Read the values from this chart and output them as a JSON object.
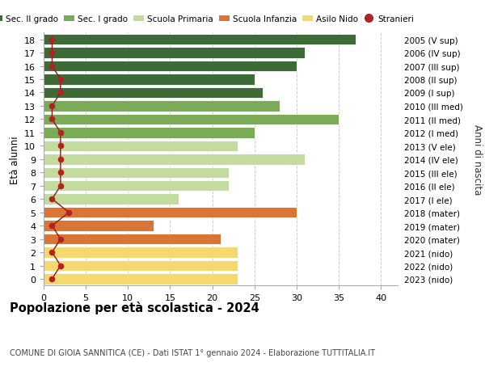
{
  "ages": [
    18,
    17,
    16,
    15,
    14,
    13,
    12,
    11,
    10,
    9,
    8,
    7,
    6,
    5,
    4,
    3,
    2,
    1,
    0
  ],
  "right_labels": [
    "2005 (V sup)",
    "2006 (IV sup)",
    "2007 (III sup)",
    "2008 (II sup)",
    "2009 (I sup)",
    "2010 (III med)",
    "2011 (II med)",
    "2012 (I med)",
    "2013 (V ele)",
    "2014 (IV ele)",
    "2015 (III ele)",
    "2016 (II ele)",
    "2017 (I ele)",
    "2018 (mater)",
    "2019 (mater)",
    "2020 (mater)",
    "2021 (nido)",
    "2022 (nido)",
    "2023 (nido)"
  ],
  "bar_values": [
    37,
    31,
    30,
    25,
    26,
    28,
    35,
    25,
    23,
    31,
    22,
    22,
    16,
    30,
    13,
    21,
    23,
    23,
    23
  ],
  "bar_colors": [
    "#3d6b35",
    "#3d6b35",
    "#3d6b35",
    "#3d6b35",
    "#3d6b35",
    "#7aab57",
    "#7aab57",
    "#7aab57",
    "#c3dba0",
    "#c3dba0",
    "#c3dba0",
    "#c3dba0",
    "#c3dba0",
    "#d97535",
    "#d97535",
    "#d97535",
    "#f5d96e",
    "#f5d96e",
    "#f5d96e"
  ],
  "stranieri_values": [
    1,
    1,
    1,
    2,
    2,
    1,
    1,
    2,
    2,
    2,
    2,
    2,
    1,
    3,
    1,
    2,
    1,
    2,
    1
  ],
  "legend_labels": [
    "Sec. II grado",
    "Sec. I grado",
    "Scuola Primaria",
    "Scuola Infanzia",
    "Asilo Nido",
    "Stranieri"
  ],
  "legend_colors": [
    "#3d6b35",
    "#7aab57",
    "#c3dba0",
    "#d97535",
    "#f5d96e",
    "#b22222"
  ],
  "ylabel": "Età alunni",
  "ylabel_right": "Anni di nascita",
  "title": "Popolazione per età scolastica - 2024",
  "subtitle": "COMUNE DI GIOIA SANNITICA (CE) - Dati ISTAT 1° gennaio 2024 - Elaborazione TUTTITALIA.IT",
  "xlim": [
    0,
    42
  ],
  "xticks": [
    0,
    5,
    10,
    15,
    20,
    25,
    30,
    35,
    40
  ],
  "bg_color": "#ffffff",
  "grid_color": "#cccccc"
}
